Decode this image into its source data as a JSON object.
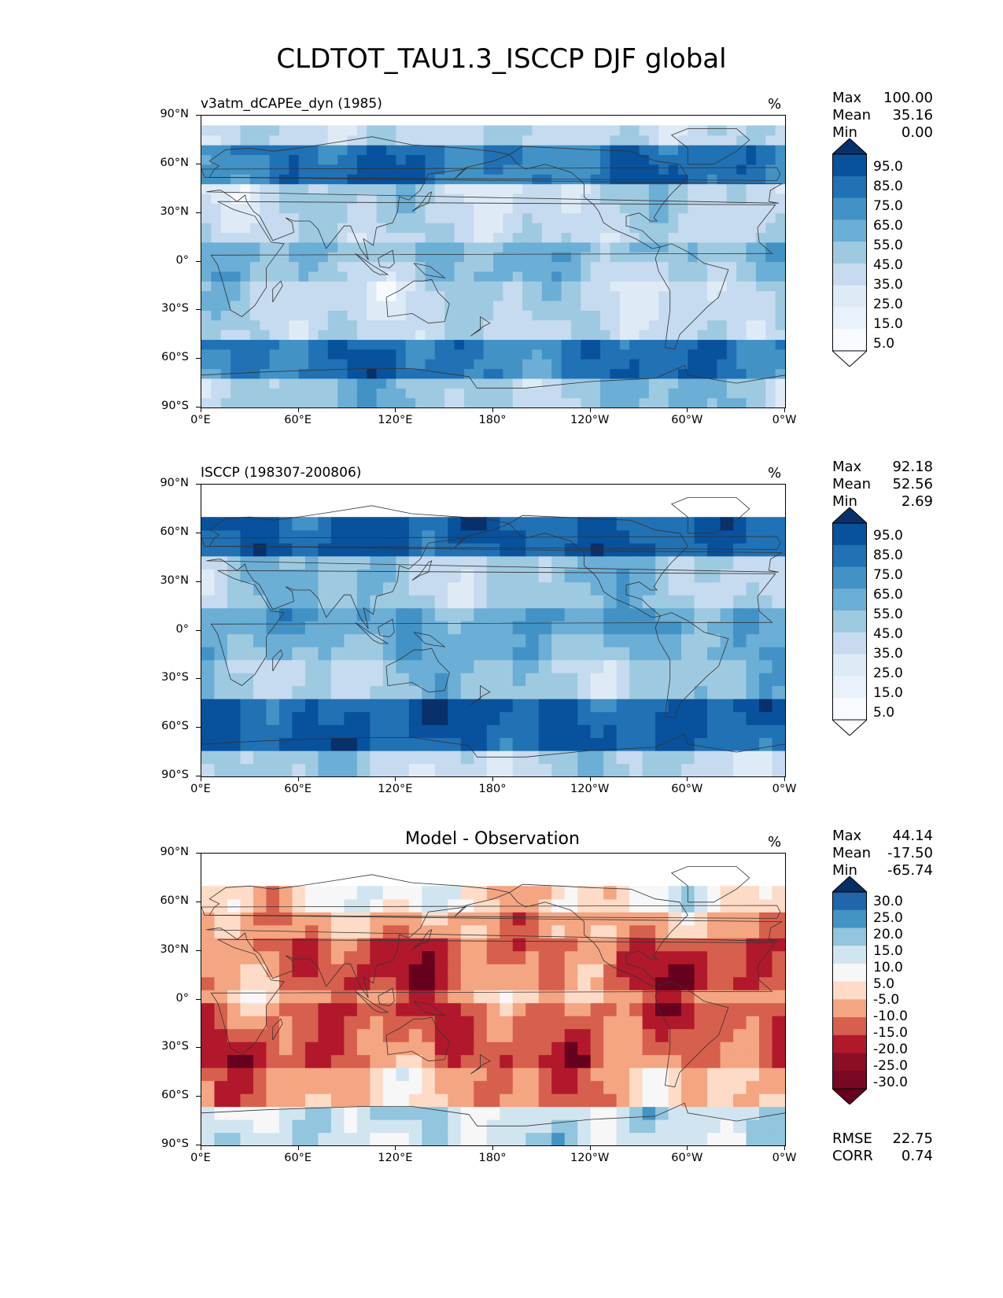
{
  "title": "CLDTOT_TAU1.3_ISCCP DJF global",
  "axes": {
    "yticks": [
      "90°N",
      "60°N",
      "30°N",
      "0°",
      "30°S",
      "60°S",
      "90°S"
    ],
    "xticks": [
      "0°E",
      "60°E",
      "120°E",
      "180°",
      "120°W",
      "60°W",
      "0°W"
    ]
  },
  "panels": [
    {
      "label": "v3atm_dCAPEe_dyn (1985)",
      "units": "%",
      "stats": [
        {
          "label": "Max",
          "value": "100.00"
        },
        {
          "label": "Mean",
          "value": "35.16"
        },
        {
          "label": "Min",
          "value": "0.00"
        }
      ],
      "colorbar": [
        "95.0",
        "85.0",
        "75.0",
        "65.0",
        "55.0",
        "45.0",
        "35.0",
        "25.0",
        "15.0",
        "5.0"
      ]
    },
    {
      "label": "ISCCP (198307-200806)",
      "units": "%",
      "stats": [
        {
          "label": "Max",
          "value": "92.18"
        },
        {
          "label": "Mean",
          "value": "52.56"
        },
        {
          "label": "Min",
          "value": "2.69"
        }
      ],
      "colorbar": [
        "95.0",
        "85.0",
        "75.0",
        "65.0",
        "55.0",
        "45.0",
        "35.0",
        "25.0",
        "15.0",
        "5.0"
      ]
    },
    {
      "label": "Model - Observation",
      "units": "%",
      "stats": [
        {
          "label": "Max",
          "value": "44.14"
        },
        {
          "label": "Mean",
          "value": "-17.50"
        },
        {
          "label": "Min",
          "value": "-65.74"
        }
      ],
      "colorbar": [
        "30.0",
        "25.0",
        "20.0",
        "15.0",
        "10.0",
        "5.0",
        "-5.0",
        "-10.0",
        "-15.0",
        "-20.0",
        "-25.0",
        "-30.0"
      ],
      "extra": [
        {
          "label": "RMSE",
          "value": "22.75"
        },
        {
          "label": "CORR",
          "value": "0.74"
        }
      ]
    }
  ],
  "colors": {
    "blues": [
      "#f7fbff",
      "#deebf7",
      "#c6dbef",
      "#9ecae1",
      "#6baed6",
      "#4292c6",
      "#2171b5",
      "#08519c",
      "#08306b"
    ],
    "diverging": [
      "#67001f",
      "#b2182b",
      "#d6604d",
      "#f4a582",
      "#fddbc7",
      "#f7f7f7",
      "#d1e5f0",
      "#92c5de",
      "#4393c3",
      "#2166ac",
      "#053061"
    ],
    "coastline": "#333333"
  }
}
